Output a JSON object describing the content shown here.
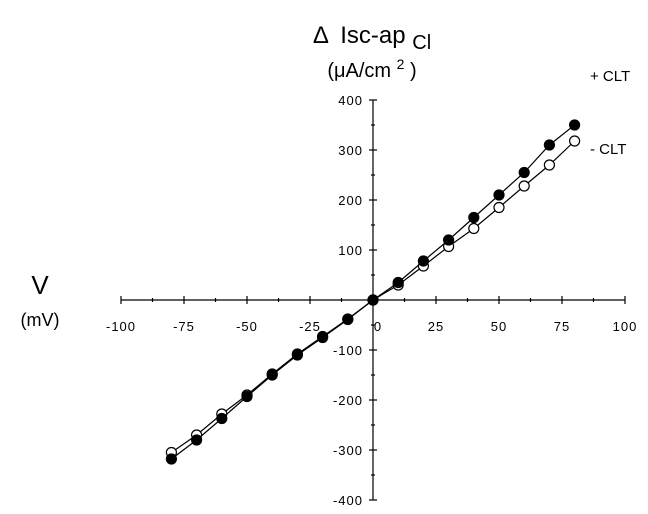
{
  "chart_data": {
    "type": "line",
    "y_title": {
      "delta": "Δ",
      "main": "Isc-ap",
      "sub": "Cl",
      "units_prefix": "(μA/cm",
      "units_sup": "2",
      "units_suffix": ")"
    },
    "x_title": {
      "main": "V",
      "units": "(mV)"
    },
    "xlim": [
      -100,
      100
    ],
    "ylim": [
      -400,
      400
    ],
    "x_ticks": [
      -100,
      -75,
      -50,
      -25,
      0,
      25,
      50,
      75,
      100
    ],
    "y_ticks": [
      -400,
      -300,
      -200,
      -100,
      100,
      200,
      300,
      400
    ],
    "x": [
      -80,
      -70,
      -60,
      -50,
      -40,
      -30,
      -20,
      -10,
      0,
      10,
      20,
      30,
      40,
      50,
      60,
      70,
      80
    ],
    "series": [
      {
        "name": "+ CLT",
        "marker": "filled",
        "values": [
          -318,
          -280,
          -237,
          -193,
          -150,
          -110,
          -75,
          -39,
          0,
          35,
          78,
          120,
          165,
          210,
          255,
          310,
          350
        ]
      },
      {
        "name": "- CLT",
        "marker": "open",
        "values": [
          -305,
          -270,
          -228,
          -190,
          -148,
          -108,
          -73,
          -38,
          0,
          30,
          68,
          107,
          143,
          185,
          228,
          270,
          318
        ]
      }
    ]
  }
}
